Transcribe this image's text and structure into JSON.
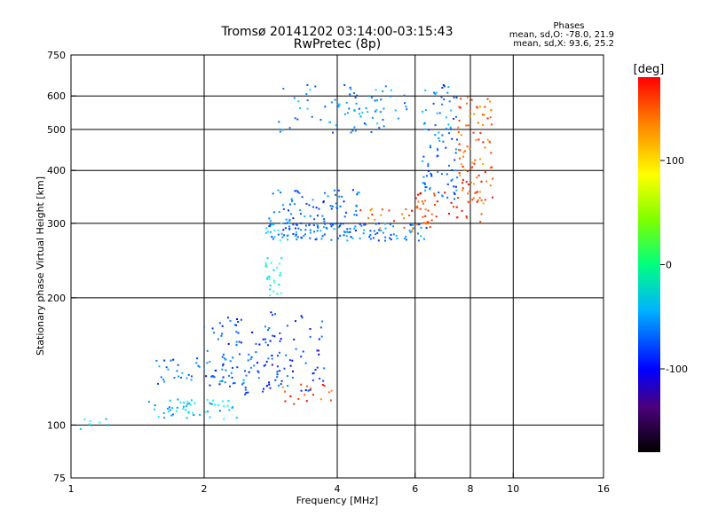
{
  "chart_data": {
    "type": "scatter",
    "title": "Tromsø 20141202 03:14:00-03:15:43",
    "subtitle": "RwPretec (8p)",
    "xlabel": "Frequency [MHz]",
    "ylabel": "Stationary phase Virtual Height [km]",
    "x_scale": "log",
    "y_scale": "log",
    "xlim": [
      1,
      16
    ],
    "ylim": [
      75,
      750
    ],
    "x_ticks": [
      1,
      2,
      4,
      6,
      8,
      10,
      16
    ],
    "x_tick_labels": [
      "1",
      "2",
      "4",
      "6",
      "8",
      "10",
      "16"
    ],
    "y_ticks": [
      75,
      100,
      200,
      300,
      400,
      500,
      600,
      750
    ],
    "y_tick_labels": [
      "75",
      "100",
      "200",
      "300",
      "400",
      "500",
      "600",
      "750"
    ],
    "x_grid": [
      2,
      4,
      6,
      8,
      10
    ],
    "y_grid": [
      100,
      200,
      300,
      400,
      500,
      600
    ],
    "grid": true,
    "phase_info": {
      "heading": "Phases",
      "o_mode": "mean, sd,O: -78.0, 21.9",
      "x_mode": "mean, sd,X:  93.6, 25.2"
    },
    "colorbar": {
      "label": "[deg]",
      "range": [
        -180,
        180
      ],
      "ticks": [
        100,
        0,
        -100
      ],
      "tick_labels": [
        "100",
        "0",
        "-100"
      ]
    },
    "clusters": [
      {
        "f": [
          1.05,
          1.25
        ],
        "h": [
          97,
          104
        ],
        "phase": -60,
        "n": 8
      },
      {
        "f": [
          1.5,
          2.4
        ],
        "h": [
          103,
          115
        ],
        "phase": -65,
        "n": 55
      },
      {
        "f": [
          1.55,
          2.6
        ],
        "h": [
          125,
          145
        ],
        "phase": -95,
        "n": 50
      },
      {
        "f": [
          2.0,
          3.0
        ],
        "h": [
          115,
          180
        ],
        "phase": -110,
        "n": 80
      },
      {
        "f": [
          2.7,
          3.8
        ],
        "h": [
          120,
          185
        ],
        "phase": -115,
        "n": 60
      },
      {
        "f": [
          3.0,
          3.9
        ],
        "h": [
          112,
          125
        ],
        "phase": 110,
        "n": 18
      },
      {
        "f": [
          2.75,
          3.0
        ],
        "h": [
          200,
          300
        ],
        "phase": -40,
        "n": 35
      },
      {
        "f": [
          2.8,
          6.4
        ],
        "h": [
          272,
          300
        ],
        "phase": -95,
        "n": 140
      },
      {
        "f": [
          2.8,
          4.5
        ],
        "h": [
          300,
          360
        ],
        "phase": -100,
        "n": 70
      },
      {
        "f": [
          4.5,
          6.5
        ],
        "h": [
          285,
          330
        ],
        "phase": 105,
        "n": 30
      },
      {
        "f": [
          2.95,
          5.8
        ],
        "h": [
          490,
          640
        ],
        "phase": -85,
        "n": 80
      },
      {
        "f": [
          6.2,
          7.5
        ],
        "h": [
          340,
          640
        ],
        "phase": -95,
        "n": 90
      },
      {
        "f": [
          7.5,
          9.0
        ],
        "h": [
          330,
          600
        ],
        "phase": 105,
        "n": 90
      },
      {
        "f": [
          6.0,
          8.5
        ],
        "h": [
          300,
          360
        ],
        "phase": 120,
        "n": 40
      }
    ]
  }
}
